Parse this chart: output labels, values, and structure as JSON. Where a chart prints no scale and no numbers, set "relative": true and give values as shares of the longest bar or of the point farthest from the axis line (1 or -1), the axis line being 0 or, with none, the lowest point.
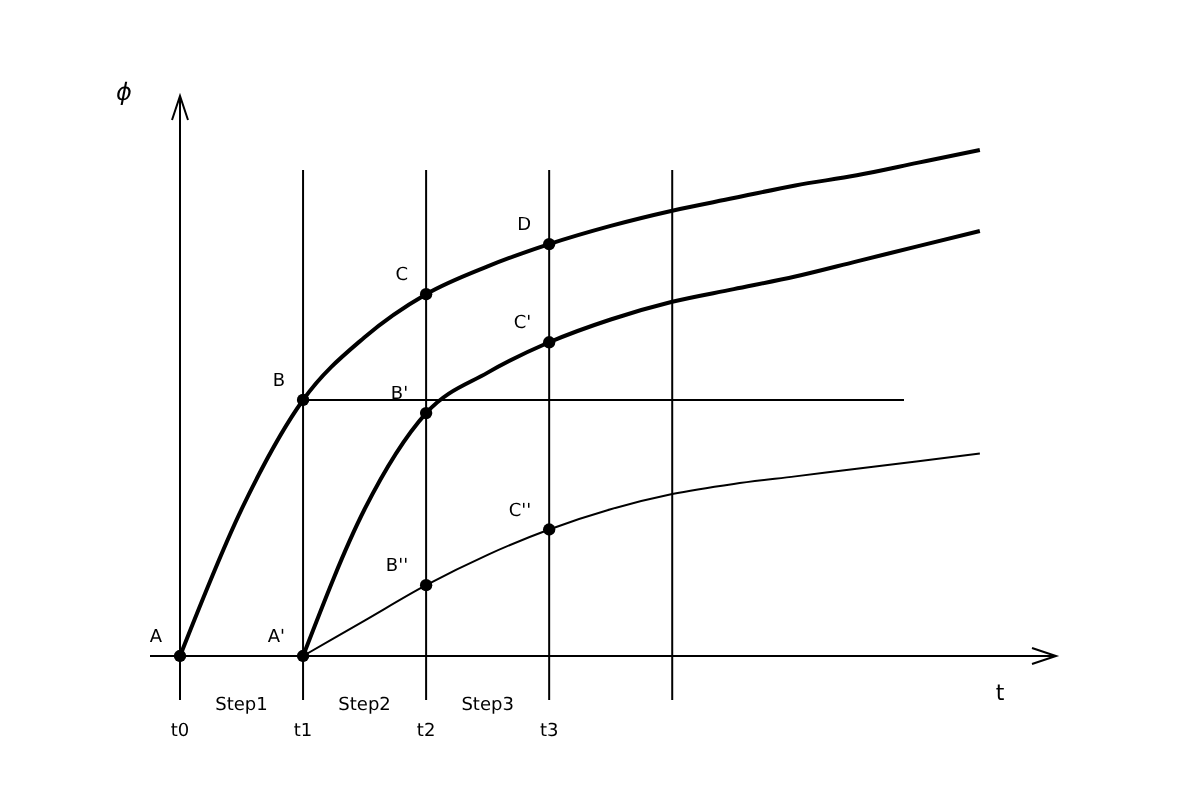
{
  "chart_data": {
    "type": "line",
    "relative": true,
    "xlabel": "t",
    "ylabel": "ϕ",
    "categories": [
      "t0",
      null,
      "t1",
      null,
      "t2",
      null,
      "t3",
      null,
      null,
      null,
      null,
      null,
      null,
      null
    ],
    "marker": "none",
    "line_style": "solid",
    "grid": "x",
    "series": [
      {
        "color": "#000000",
        "values": [
          0,
          0.29,
          0.506,
          0.63,
          0.715,
          0.77,
          0.814,
          0.85,
          0.88,
          0.905,
          0.93,
          0.95,
          0.975,
          1.0
        ]
      },
      {
        "color": "#000000",
        "values": [
          null,
          null,
          0,
          0.29,
          0.48,
          0.56,
          0.62,
          0.665,
          0.7,
          0.725,
          0.75,
          0.78,
          0.81,
          0.84
        ]
      },
      {
        "color": "#000000",
        "values": [
          null,
          null,
          0,
          0.07,
          0.14,
          0.2,
          0.25,
          0.29,
          0.32,
          0.34,
          0.355,
          0.37,
          0.385,
          0.4
        ]
      },
      {
        "type": "scatter",
        "marker": "circle",
        "color": "#000000",
        "values": [
          0,
          null,
          0.506,
          null,
          0.715,
          null,
          0.814,
          null,
          null,
          null,
          null,
          null,
          null,
          null
        ]
      },
      {
        "type": "scatter",
        "marker": "circle",
        "color": "#000000",
        "values": [
          null,
          null,
          0,
          null,
          0.48,
          null,
          0.62,
          null,
          null,
          null,
          null,
          null,
          null,
          null
        ]
      },
      {
        "type": "scatter",
        "marker": "circle",
        "color": "#000000",
        "values": [
          null,
          null,
          null,
          null,
          0.14,
          null,
          0.25,
          null,
          null,
          null,
          null,
          null,
          null,
          null
        ]
      }
    ],
    "ref_lines": [
      {
        "axis": "y",
        "value": 0.506,
        "label": null,
        "color": "#000000"
      }
    ],
    "annotations": [
      {
        "text": "A",
        "x": "t0",
        "y": 0
      },
      {
        "text": "B",
        "x": "t1",
        "y": 0.506
      },
      {
        "text": "C",
        "x": "t2",
        "y": 0.715
      },
      {
        "text": "D",
        "x": "t3",
        "y": 0.814
      },
      {
        "text": "A'",
        "x": "t1",
        "y": 0
      },
      {
        "text": "B'",
        "x": "t2",
        "y": 0.48
      },
      {
        "text": "C'",
        "x": "t3",
        "y": 0.62
      },
      {
        "text": "B''",
        "x": "t2",
        "y": 0.14
      },
      {
        "text": "C''",
        "x": "t3",
        "y": 0.25
      },
      "Step1",
      "Step2",
      "Step3"
    ]
  }
}
